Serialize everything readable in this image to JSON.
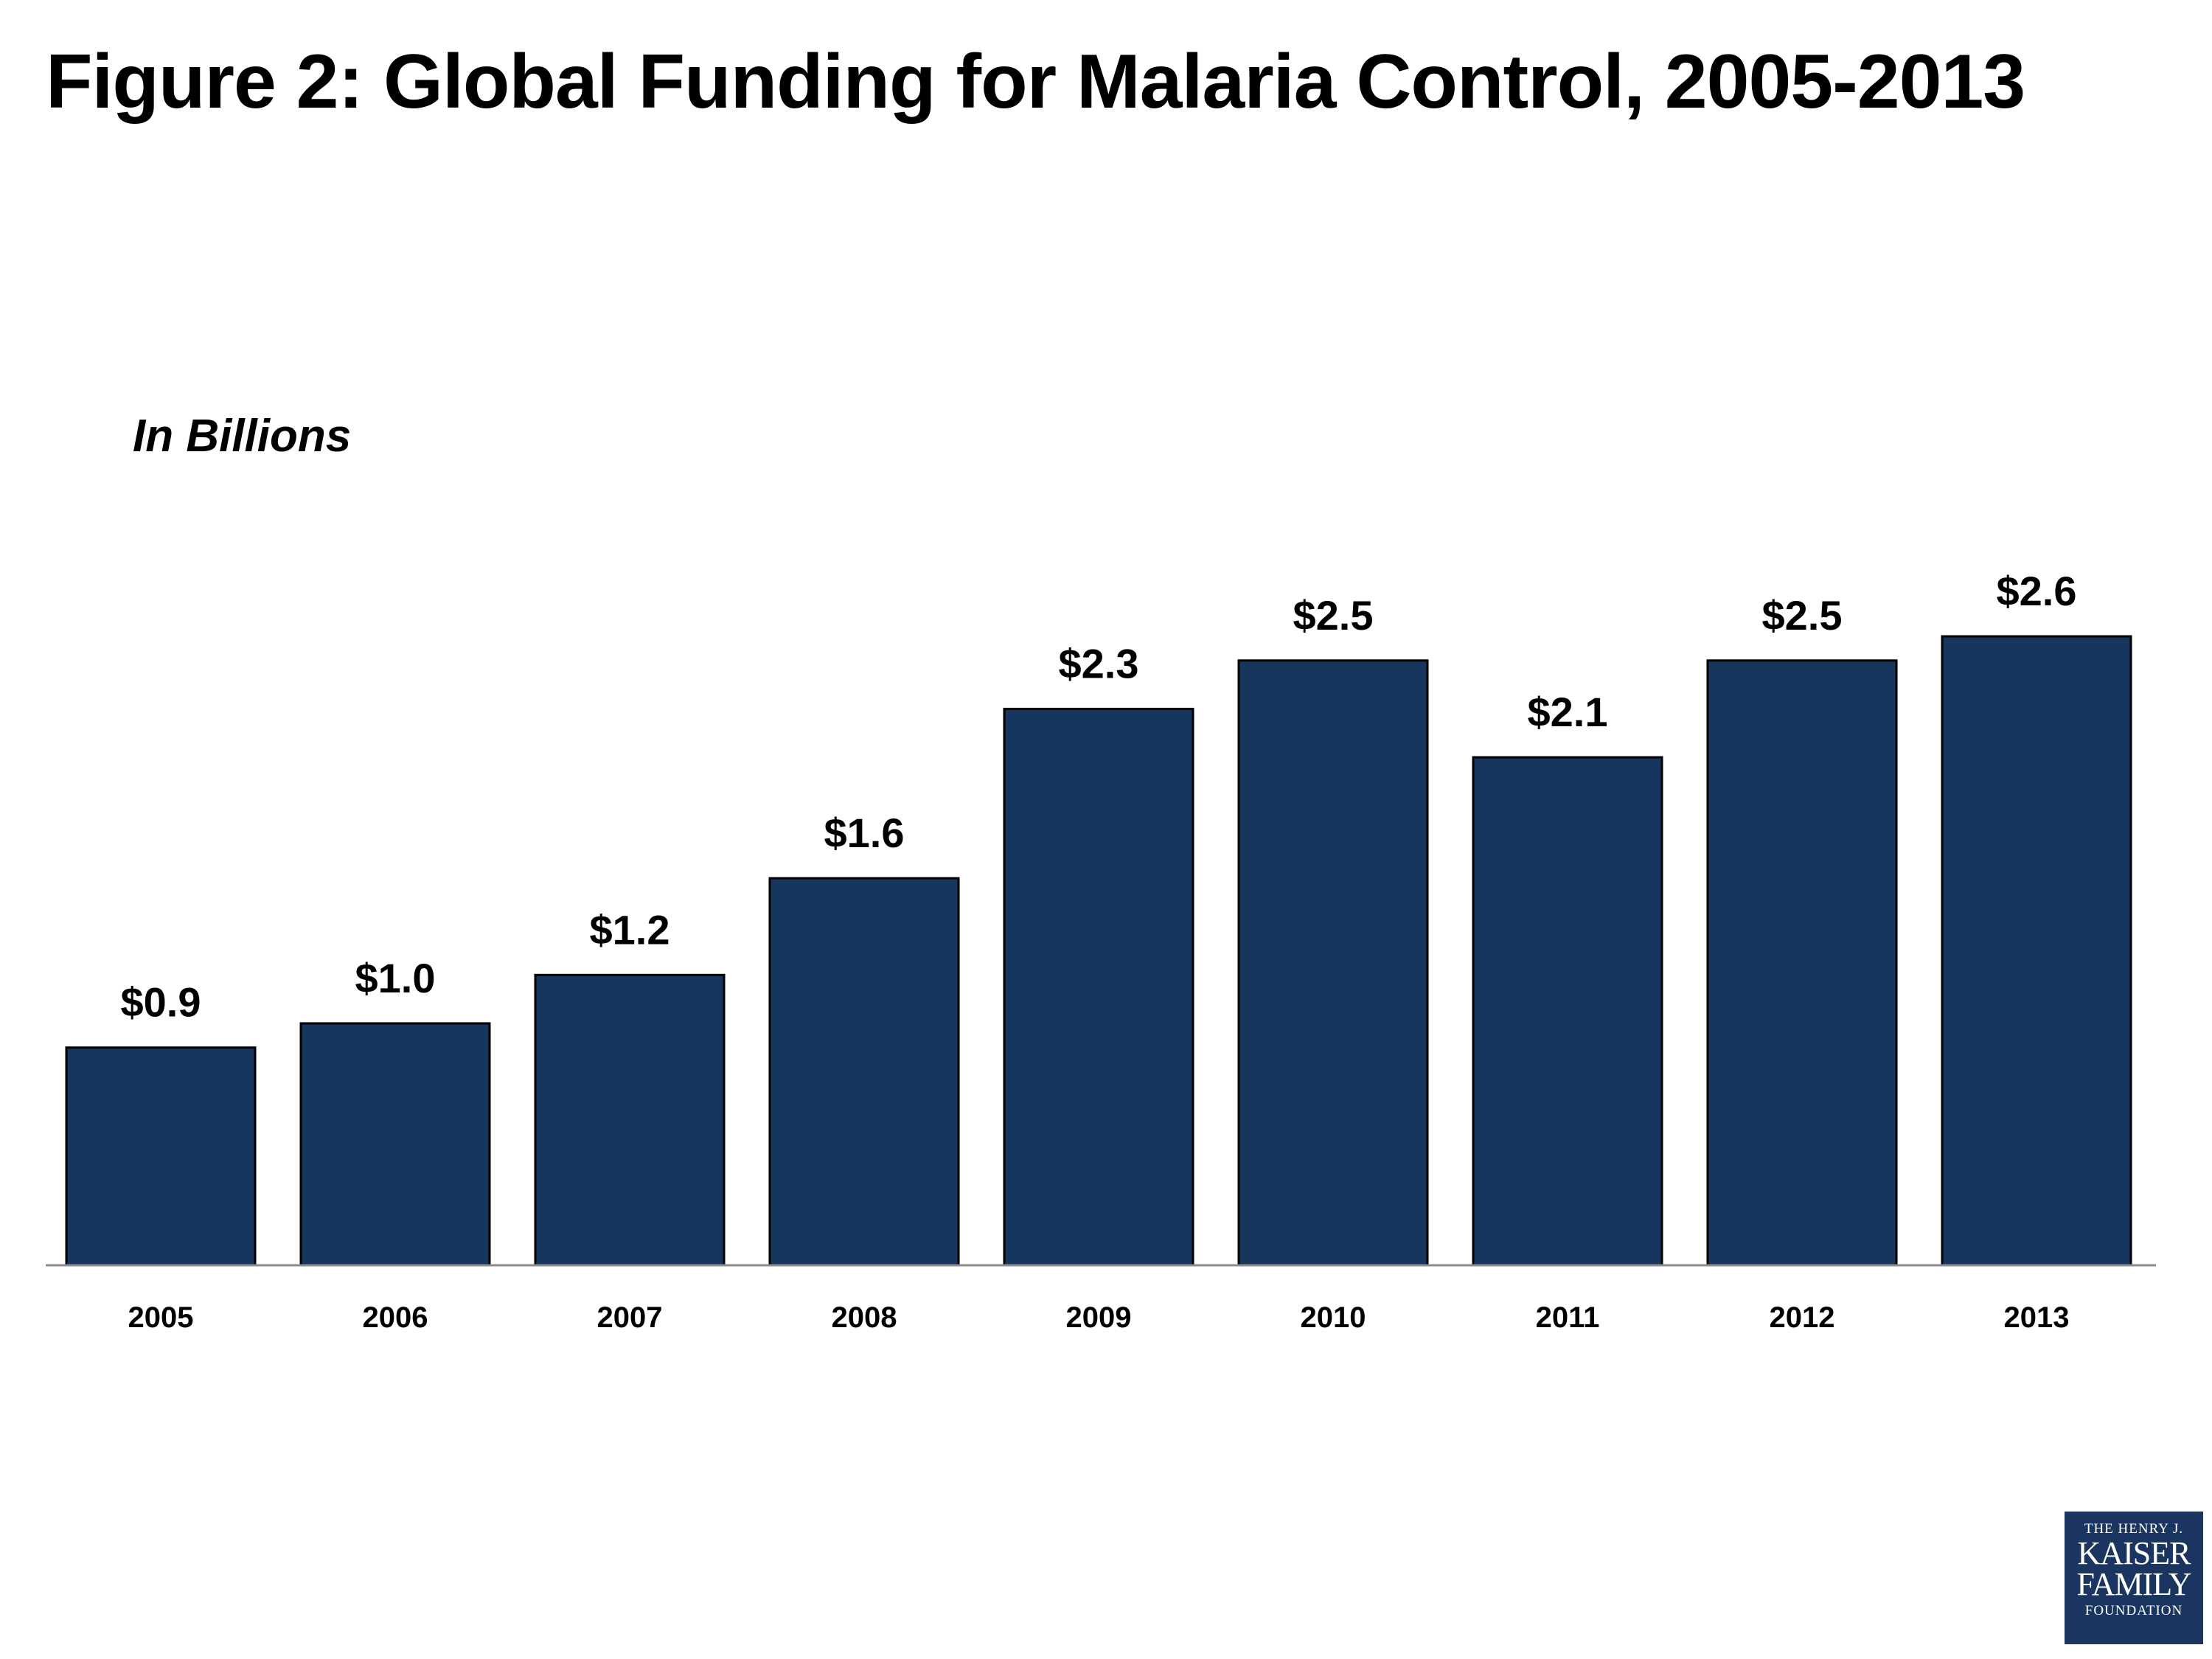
{
  "header": {
    "title": "Figure 2: Global Funding for Malaria Control, 2005-2013"
  },
  "chart_data": {
    "type": "bar",
    "title": "Figure 2: Global Funding for Malaria Control, 2005-2013",
    "subtitle": "In Billions",
    "xlabel": "",
    "ylabel": "",
    "categories": [
      "2005",
      "2006",
      "2007",
      "2008",
      "2009",
      "2010",
      "2011",
      "2012",
      "2013"
    ],
    "values": [
      0.9,
      1.0,
      1.2,
      1.6,
      2.3,
      2.5,
      2.1,
      2.5,
      2.6
    ],
    "data_labels": [
      "$0.9",
      "$1.0",
      "$1.2",
      "$1.6",
      "$2.3",
      "$2.5",
      "$2.1",
      "$2.5",
      "$2.6"
    ],
    "ylim": [
      0,
      2.85
    ],
    "grid": false,
    "bar_color": "#17365d"
  },
  "logo": {
    "line1": "THE HENRY J.",
    "line2": "KAISER",
    "line3": "FAMILY",
    "line4": "FOUNDATION",
    "color": "#1a3660"
  }
}
